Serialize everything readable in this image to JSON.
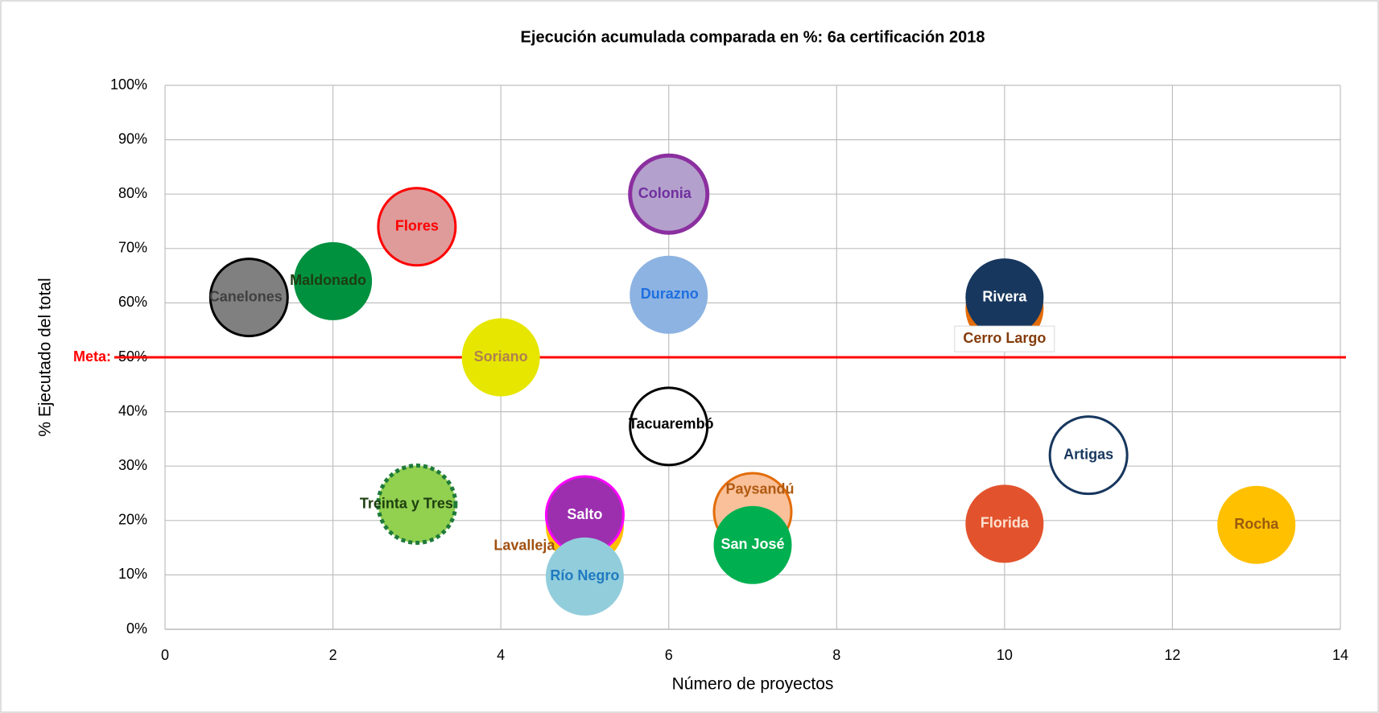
{
  "chart_data": {
    "type": "bubble",
    "title": "Ejecución  acumulada comparada en %: 6a certificación 2018",
    "x_label": "Número de proyectos",
    "y_label": "% Ejecutado del total",
    "xlim": [
      0,
      14
    ],
    "xticks": [
      0,
      2,
      4,
      6,
      8,
      10,
      12,
      14
    ],
    "ylim": [
      0,
      100
    ],
    "yticks": [
      {
        "value": 0,
        "label": "0%"
      },
      {
        "value": 10,
        "label": "10%"
      },
      {
        "value": 20,
        "label": "20%"
      },
      {
        "value": 30,
        "label": "30%"
      },
      {
        "value": 40,
        "label": "40%"
      },
      {
        "value": 50,
        "label": "50%"
      },
      {
        "value": 60,
        "label": "60%"
      },
      {
        "value": 70,
        "label": "70%"
      },
      {
        "value": 80,
        "label": "80%"
      },
      {
        "value": 90,
        "label": "90%"
      },
      {
        "value": 100,
        "label": "100%"
      }
    ],
    "grid": true,
    "meta": {
      "label": "Meta:",
      "value": 50,
      "color": "#ff0000"
    },
    "series": [
      {
        "name": "Canelones",
        "x": 1,
        "y": 61,
        "color": "#808080",
        "edge": "#000000",
        "label_color": "#404040"
      },
      {
        "name": "Maldonado",
        "x": 2,
        "y": 64,
        "color": "#00913f",
        "edge": "#00913f",
        "label_color": "#1e3c10"
      },
      {
        "name": "Flores",
        "x": 3,
        "y": 74,
        "color": "#df9a9a",
        "edge": "#ff0000",
        "label_color": "#ff0000"
      },
      {
        "name": "Soriano",
        "x": 4,
        "y": 50,
        "color": "#e6e600",
        "edge": "#e6e600",
        "label_color": "#b08050"
      },
      {
        "name": "Colonia",
        "x": 6,
        "y": 80,
        "color": "#b4a0cc",
        "edge": "#8b2fa0",
        "label_color": "#7030a0"
      },
      {
        "name": "Durazno",
        "x": 6,
        "y": 61.5,
        "color": "#8db3e2",
        "edge": "#8db3e2",
        "label_color": "#1f6fe0"
      },
      {
        "name": "Tacuarembó",
        "x": 6,
        "y": 37.3,
        "color": "#ffffff",
        "edge": "#000000",
        "label_color": "#000000"
      },
      {
        "name": "Cerro Largo",
        "x": 10,
        "y": 59,
        "color": "#e36c09",
        "edge": "#e36c09",
        "label_color": "#843c0c"
      },
      {
        "name": "Rivera",
        "x": 10,
        "y": 61,
        "color": "#17375e",
        "edge": "#17375e",
        "label_color": "#ffffff"
      },
      {
        "name": "Artigas",
        "x": 11,
        "y": 32,
        "color": "#ffffff",
        "edge": "#17375e",
        "label_color": "#17375e"
      },
      {
        "name": "Treinta y Tres",
        "x": 3,
        "y": 23,
        "color": "#92d050",
        "edge": "#1e7b3a",
        "edge_style": "dotted",
        "label_color": "#1e4010"
      },
      {
        "name": "Lavalleja",
        "x": 5,
        "y": 19,
        "color": "#ffc000",
        "edge": "#ffc000",
        "label_color": "#a05010"
      },
      {
        "name": "Salto",
        "x": 5,
        "y": 21,
        "color": "#9b2fae",
        "edge": "#ff00ff",
        "label_color": "#ffffff"
      },
      {
        "name": "Río Negro",
        "x": 5,
        "y": 9.7,
        "color": "#92cddc",
        "edge": "#92cddc",
        "label_color": "#1f7ac0"
      },
      {
        "name": "Paysandú",
        "x": 7,
        "y": 21.6,
        "color": "#f9c09a",
        "edge": "#e36c09",
        "label_color": "#b05a10"
      },
      {
        "name": "San José",
        "x": 7,
        "y": 15.5,
        "color": "#00b050",
        "edge": "#00b050",
        "label_color": "#ffffff"
      },
      {
        "name": "Florida",
        "x": 10,
        "y": 19.4,
        "color": "#e2532d",
        "edge": "#e2532d",
        "label_color": "#fde0d0"
      },
      {
        "name": "Rocha",
        "x": 13,
        "y": 19.2,
        "color": "#ffc000",
        "edge": "#ffc000",
        "label_color": "#9a5a10"
      }
    ]
  }
}
